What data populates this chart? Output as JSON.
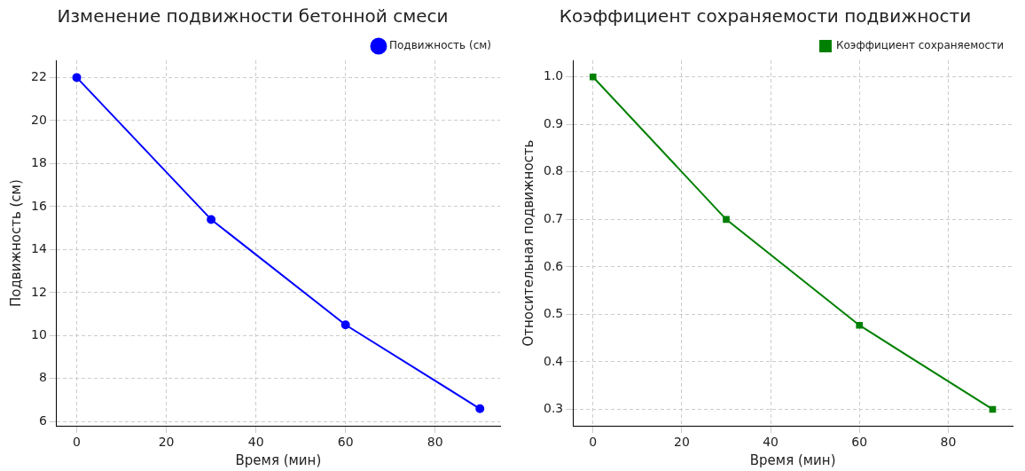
{
  "chart_data": [
    {
      "type": "line",
      "title": "Изменение подвижности бетонной смеси",
      "xlabel": "Время (мин)",
      "ylabel": "Подвижность (см)",
      "x": [
        0,
        30,
        60,
        90
      ],
      "series": [
        {
          "name": "Подвижность (см)",
          "color": "#0000ff",
          "values": [
            22,
            15.4,
            10.5,
            6.6
          ]
        }
      ],
      "xlim": [
        -4.5,
        94.5
      ],
      "xticks": [
        0,
        20,
        40,
        60,
        80
      ],
      "ylim": [
        5.8,
        22.8
      ],
      "yticks": [
        6,
        8,
        10,
        12,
        14,
        16,
        18,
        20,
        22
      ],
      "grid": true,
      "legend": "top right",
      "marker": "circle",
      "line_style": "solid"
    },
    {
      "type": "line",
      "title": "Коэффициент сохраняемости подвижности",
      "xlabel": "Время (мин)",
      "ylabel": "Относительная подвижность",
      "x": [
        0,
        30,
        60,
        90
      ],
      "series": [
        {
          "name": "Коэффициент сохраняемости",
          "color": "#008000",
          "values": [
            1.0,
            0.7,
            0.477,
            0.3
          ]
        }
      ],
      "xlim": [
        -4.5,
        94.5
      ],
      "xticks": [
        0,
        20,
        40,
        60,
        80
      ],
      "ylim": [
        0.265,
        1.035
      ],
      "yticks": [
        0.3,
        0.4,
        0.5,
        0.6,
        0.7,
        0.8,
        0.9,
        {
          "value": 1,
          "label": "1.0"
        }
      ],
      "grid": true,
      "legend": "top right",
      "marker": "square",
      "line_style": "solid"
    }
  ]
}
